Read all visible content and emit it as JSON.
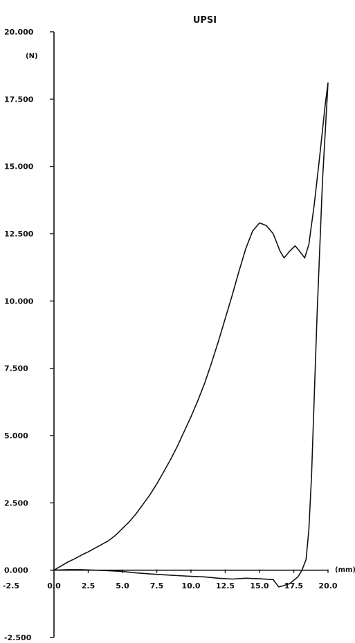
{
  "chart_data": {
    "type": "line",
    "title": "UPSI",
    "ylabel": "(N)",
    "xlabel": "(mm)",
    "xlim": [
      -2.5,
      20.0
    ],
    "ylim": [
      -2500,
      20000
    ],
    "x_tick_labels": [
      "-2.5",
      "0.0",
      "2.5",
      "5.0",
      "7.5",
      "10.0",
      "12.5",
      "15.0",
      "17.5",
      "20.0"
    ],
    "y_tick_labels": [
      "-2.500",
      "0.000",
      "2.500",
      "5.000",
      "7.500",
      "10.000",
      "12.500",
      "15.000",
      "17.500",
      "20.000"
    ],
    "grid": false,
    "series": [
      {
        "points": [
          [
            0.0,
            0
          ],
          [
            0.5,
            150
          ],
          [
            1.0,
            300
          ],
          [
            1.5,
            420
          ],
          [
            2.0,
            560
          ],
          [
            2.5,
            680
          ],
          [
            3.0,
            820
          ],
          [
            3.5,
            960
          ],
          [
            4.0,
            1100
          ],
          [
            4.5,
            1300
          ],
          [
            5.0,
            1550
          ],
          [
            5.5,
            1800
          ],
          [
            6.0,
            2100
          ],
          [
            6.5,
            2450
          ],
          [
            7.0,
            2800
          ],
          [
            7.5,
            3200
          ],
          [
            8.0,
            3650
          ],
          [
            8.5,
            4100
          ],
          [
            9.0,
            4600
          ],
          [
            9.5,
            5150
          ],
          [
            10.0,
            5700
          ],
          [
            10.5,
            6300
          ],
          [
            11.0,
            6950
          ],
          [
            11.5,
            7700
          ],
          [
            12.0,
            8500
          ],
          [
            12.5,
            9350
          ],
          [
            13.0,
            10200
          ],
          [
            13.5,
            11100
          ],
          [
            14.0,
            11950
          ],
          [
            14.5,
            12600
          ],
          [
            15.0,
            12900
          ],
          [
            15.5,
            12800
          ],
          [
            16.0,
            12500
          ],
          [
            16.5,
            11850
          ],
          [
            16.8,
            11600
          ],
          [
            17.2,
            11850
          ],
          [
            17.6,
            12050
          ],
          [
            18.0,
            11800
          ],
          [
            18.3,
            11600
          ],
          [
            18.6,
            12100
          ],
          [
            19.0,
            13600
          ],
          [
            19.4,
            15400
          ],
          [
            19.8,
            17300
          ],
          [
            20.0,
            18100
          ],
          [
            19.6,
            14500
          ],
          [
            19.2,
            9500
          ],
          [
            19.0,
            6500
          ],
          [
            18.8,
            3500
          ],
          [
            18.6,
            1500
          ],
          [
            18.4,
            400
          ],
          [
            18.1,
            0
          ],
          [
            17.8,
            -250
          ],
          [
            17.2,
            -500
          ],
          [
            16.6,
            -600
          ],
          [
            16.4,
            -620
          ],
          [
            16.0,
            -350
          ],
          [
            15.0,
            -320
          ],
          [
            14.0,
            -300
          ],
          [
            13.0,
            -330
          ],
          [
            12.0,
            -300
          ],
          [
            11.0,
            -250
          ],
          [
            10.0,
            -230
          ],
          [
            9.0,
            -200
          ],
          [
            8.0,
            -170
          ],
          [
            7.0,
            -140
          ],
          [
            6.0,
            -100
          ],
          [
            5.0,
            -50
          ],
          [
            4.0,
            -20
          ],
          [
            3.0,
            0
          ],
          [
            2.0,
            20
          ],
          [
            1.0,
            20
          ],
          [
            0.0,
            0
          ]
        ]
      }
    ]
  }
}
